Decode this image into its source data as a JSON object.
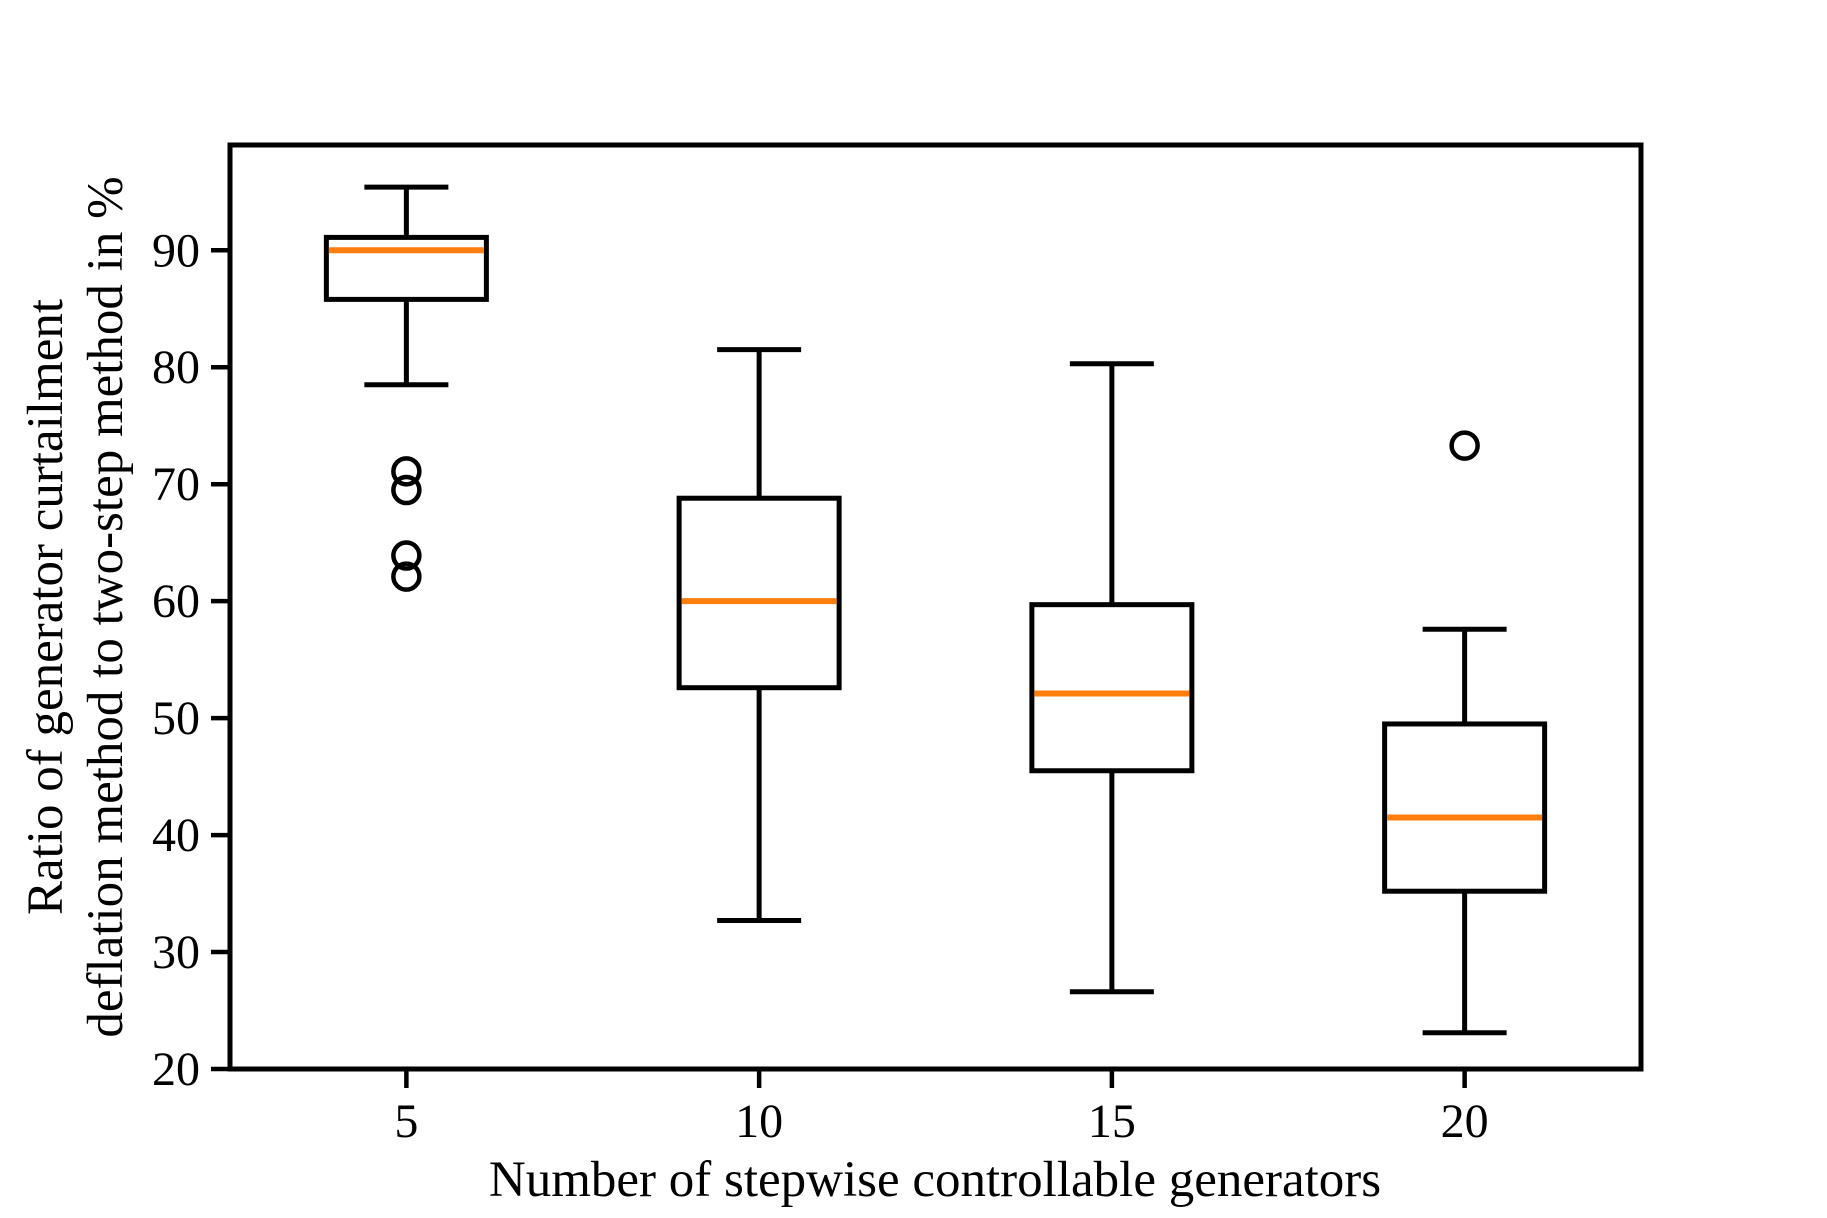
{
  "chart_data": {
    "type": "boxplot",
    "title": "",
    "xlabel": "Number of stepwise controllable generators",
    "ylabel_line1": "Ratio of generator curtailment",
    "ylabel_line2": "deflation method to two-step method in %",
    "categories": [
      5,
      10,
      15,
      20
    ],
    "xticks": [
      "5",
      "10",
      "15",
      "20"
    ],
    "yticks": [
      20,
      30,
      40,
      50,
      60,
      70,
      80,
      90
    ],
    "xlim": [
      2.5,
      22.5
    ],
    "ylim": [
      20,
      99
    ],
    "grid": false,
    "legend": null,
    "series": [
      {
        "x": 5,
        "whisker_low": 78.5,
        "q1": 85.8,
        "median": 90.0,
        "q3": 91.1,
        "whisker_high": 95.4,
        "outliers": [
          71.1,
          69.5,
          63.9,
          62.1
        ]
      },
      {
        "x": 10,
        "whisker_low": 32.7,
        "q1": 52.6,
        "median": 60.0,
        "q3": 68.8,
        "whisker_high": 81.5,
        "outliers": []
      },
      {
        "x": 15,
        "whisker_low": 26.6,
        "q1": 45.5,
        "median": 52.1,
        "q3": 59.7,
        "whisker_high": 80.3,
        "outliers": []
      },
      {
        "x": 20,
        "whisker_low": 23.1,
        "q1": 35.2,
        "median": 41.5,
        "q3": 49.5,
        "whisker_high": 57.6,
        "outliers": [
          73.3
        ]
      }
    ],
    "colors": {
      "box_line": "#000000",
      "median_line": "#ff7f0e",
      "background": "#ffffff"
    }
  }
}
